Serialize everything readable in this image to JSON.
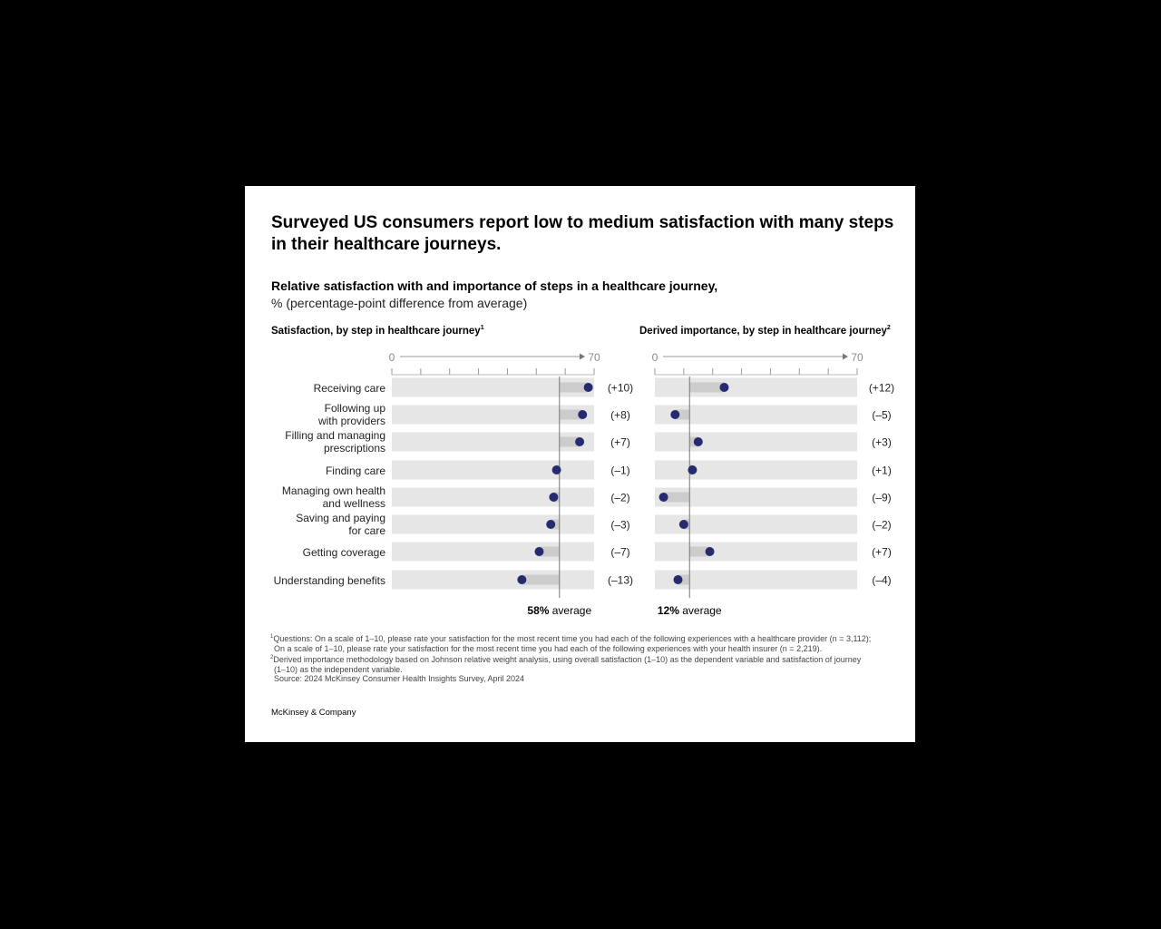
{
  "title": "Surveyed US consumers report low to medium satisfaction with many steps in their healthcare journeys.",
  "subtitle": "Relative satisfaction with and importance of steps in a healthcare journey,",
  "subtitle_unit": "% (percentage-point difference from average)",
  "panels": {
    "left_title": "Satisfaction, by step in healthcare journey",
    "left_sup": "1",
    "right_title": "Derived importance, by step in healthcare journey",
    "right_sup": "2"
  },
  "chart_data": [
    {
      "type": "dot",
      "title": "Satisfaction, by step in healthcare journey",
      "xlim": [
        0,
        70
      ],
      "tick_labels": [
        "0",
        "70"
      ],
      "average": 58,
      "average_label_value": "58%",
      "average_label_text": "average",
      "categories": [
        "Receiving care",
        "Following up\nwith providers",
        "Filling and managing\nprescriptions",
        "Finding care",
        "Managing own health\nand wellness",
        "Saving and paying\nfor care",
        "Getting coverage",
        "Understanding benefits"
      ],
      "values": [
        68,
        66,
        65,
        57,
        56,
        55,
        51,
        45
      ],
      "differences": [
        "(+10)",
        "(+8)",
        "(+7)",
        "(–1)",
        "(–2)",
        "(–3)",
        "(–7)",
        "(–13)"
      ]
    },
    {
      "type": "dot",
      "title": "Derived importance, by step in healthcare journey",
      "xlim": [
        0,
        70
      ],
      "tick_labels": [
        "0",
        "70"
      ],
      "average": 12,
      "average_label_value": "12%",
      "average_label_text": "average",
      "categories": [
        "Receiving care",
        "Following up with providers",
        "Filling and managing prescriptions",
        "Finding care",
        "Managing own health and wellness",
        "Saving and paying for care",
        "Getting coverage",
        "Understanding benefits"
      ],
      "values": [
        24,
        7,
        15,
        13,
        3,
        10,
        19,
        8
      ],
      "differences": [
        "(+12)",
        "(–5)",
        "(+3)",
        "(+1)",
        "(–9)",
        "(–2)",
        "(+7)",
        "(–4)"
      ]
    }
  ],
  "footnotes": [
    "Questions: On a scale of 1–10, please rate your satisfaction for the most recent time you had each of the following experiences with a healthcare provider (n = 3,112);",
    "On a scale of 1–10, please rate your satisfaction for the most recent time you had each of the following experiences with your health insurer (n = 2,219).",
    "Derived importance methodology based on Johnson relative weight analysis, using overall satisfaction (1–10) as the dependent variable and satisfaction of journey",
    "(1–10) as the independent variable.",
    "Source: 2024 McKinsey Consumer Health Insights Survey, April 2024"
  ],
  "footnote_marks": [
    "1",
    "2"
  ],
  "logo": "McKinsey & Company",
  "colors": {
    "dot": "#262a6e",
    "track": "#e6e6e6",
    "diff_bar": "#cccccc",
    "average_line": "#777777",
    "axis": "#999999",
    "background": "#000000",
    "card": "#ffffff"
  }
}
